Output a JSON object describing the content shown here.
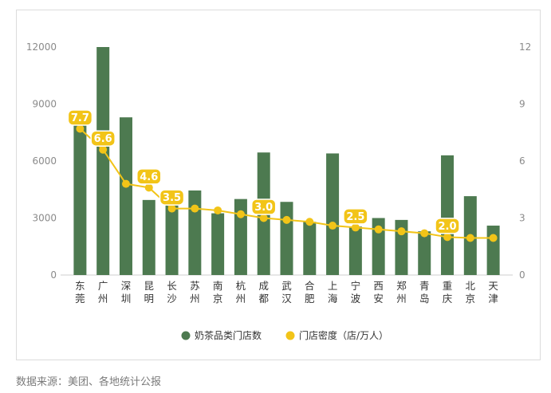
{
  "chart_data": {
    "type": "bar+line",
    "categories": [
      "东莞",
      "广州",
      "深圳",
      "昆明",
      "长沙",
      "苏州",
      "南京",
      "杭州",
      "成都",
      "武汉",
      "合肥",
      "上海",
      "宁波",
      "西安",
      "郑州",
      "青岛",
      "重庆",
      "北京",
      "天津"
    ],
    "series": [
      {
        "name": "奶茶品类门店数",
        "type": "bar",
        "axis": "left",
        "color": "#4d7a50",
        "values": [
          8100,
          12000,
          8300,
          3950,
          3850,
          4450,
          3250,
          4000,
          6450,
          3850,
          2800,
          6400,
          2550,
          3000,
          2900,
          2300,
          6300,
          4150,
          2600
        ]
      },
      {
        "name": "门店密度（店/万人）",
        "type": "line",
        "axis": "right",
        "color": "#f2c418",
        "values": [
          7.7,
          6.6,
          4.8,
          4.6,
          3.5,
          3.5,
          3.4,
          3.2,
          3.0,
          2.9,
          2.8,
          2.6,
          2.5,
          2.4,
          2.3,
          2.2,
          2.0,
          1.95,
          1.95
        ]
      }
    ],
    "data_labels": [
      {
        "index": 0,
        "text": "7.7"
      },
      {
        "index": 1,
        "text": "6.6"
      },
      {
        "index": 3,
        "text": "4.6"
      },
      {
        "index": 4,
        "text": "3.5"
      },
      {
        "index": 8,
        "text": "3.0"
      },
      {
        "index": 12,
        "text": "2.5"
      },
      {
        "index": 16,
        "text": "2.0"
      }
    ],
    "y_left": {
      "min": 0,
      "max": 12000,
      "ticks": [
        "0",
        "3000",
        "6000",
        "9000",
        "12000"
      ]
    },
    "y_right": {
      "min": 0,
      "max": 12,
      "ticks": [
        "0",
        "3",
        "6",
        "9",
        "12"
      ]
    },
    "legend": [
      "奶茶品类门店数",
      "门店密度（店/万人）"
    ],
    "legend_position": "bottom",
    "grid": false
  },
  "source": "数据来源：美团、各地统计公报"
}
